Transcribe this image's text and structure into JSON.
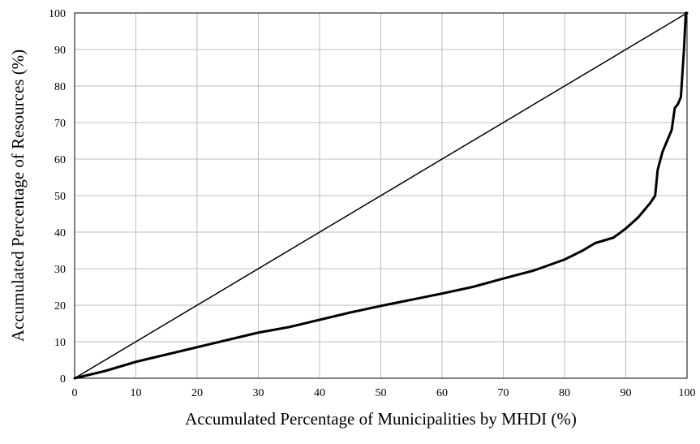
{
  "chart_data": {
    "type": "line",
    "title": "",
    "xlabel": "Accumulated Percentage of Municipalities by MHDI (%)",
    "ylabel": "Accumulated Percentage of Resources (%)",
    "xlim": [
      0,
      100
    ],
    "ylim": [
      0,
      100
    ],
    "x_ticks": [
      0,
      10,
      20,
      30,
      40,
      50,
      60,
      70,
      80,
      90,
      100
    ],
    "y_ticks": [
      0,
      10,
      20,
      30,
      40,
      50,
      60,
      70,
      80,
      90,
      100
    ],
    "grid": true,
    "legend": "none",
    "series": [
      {
        "style": "thin",
        "color": "#000000",
        "x": [
          0,
          100
        ],
        "y": [
          0,
          100
        ]
      },
      {
        "style": "thick",
        "color": "#000000",
        "x": [
          0,
          5,
          8,
          10,
          15,
          20,
          25,
          30,
          35,
          40,
          45,
          50,
          55,
          60,
          65,
          70,
          75,
          80,
          83,
          85,
          88,
          90,
          92,
          93,
          94,
          94.8,
          95.2,
          96,
          97,
          97.5,
          98,
          98.5,
          99,
          99.5,
          99.8,
          100
        ],
        "y": [
          0,
          2,
          3.5,
          4.5,
          6.5,
          8.5,
          10.5,
          12.5,
          14,
          16,
          18,
          19.8,
          21.5,
          23.2,
          25,
          27.3,
          29.5,
          32.5,
          35,
          37,
          38.5,
          41,
          44,
          46,
          48,
          50,
          57,
          62,
          66,
          68,
          74,
          75,
          77,
          90,
          100,
          100
        ]
      }
    ]
  }
}
